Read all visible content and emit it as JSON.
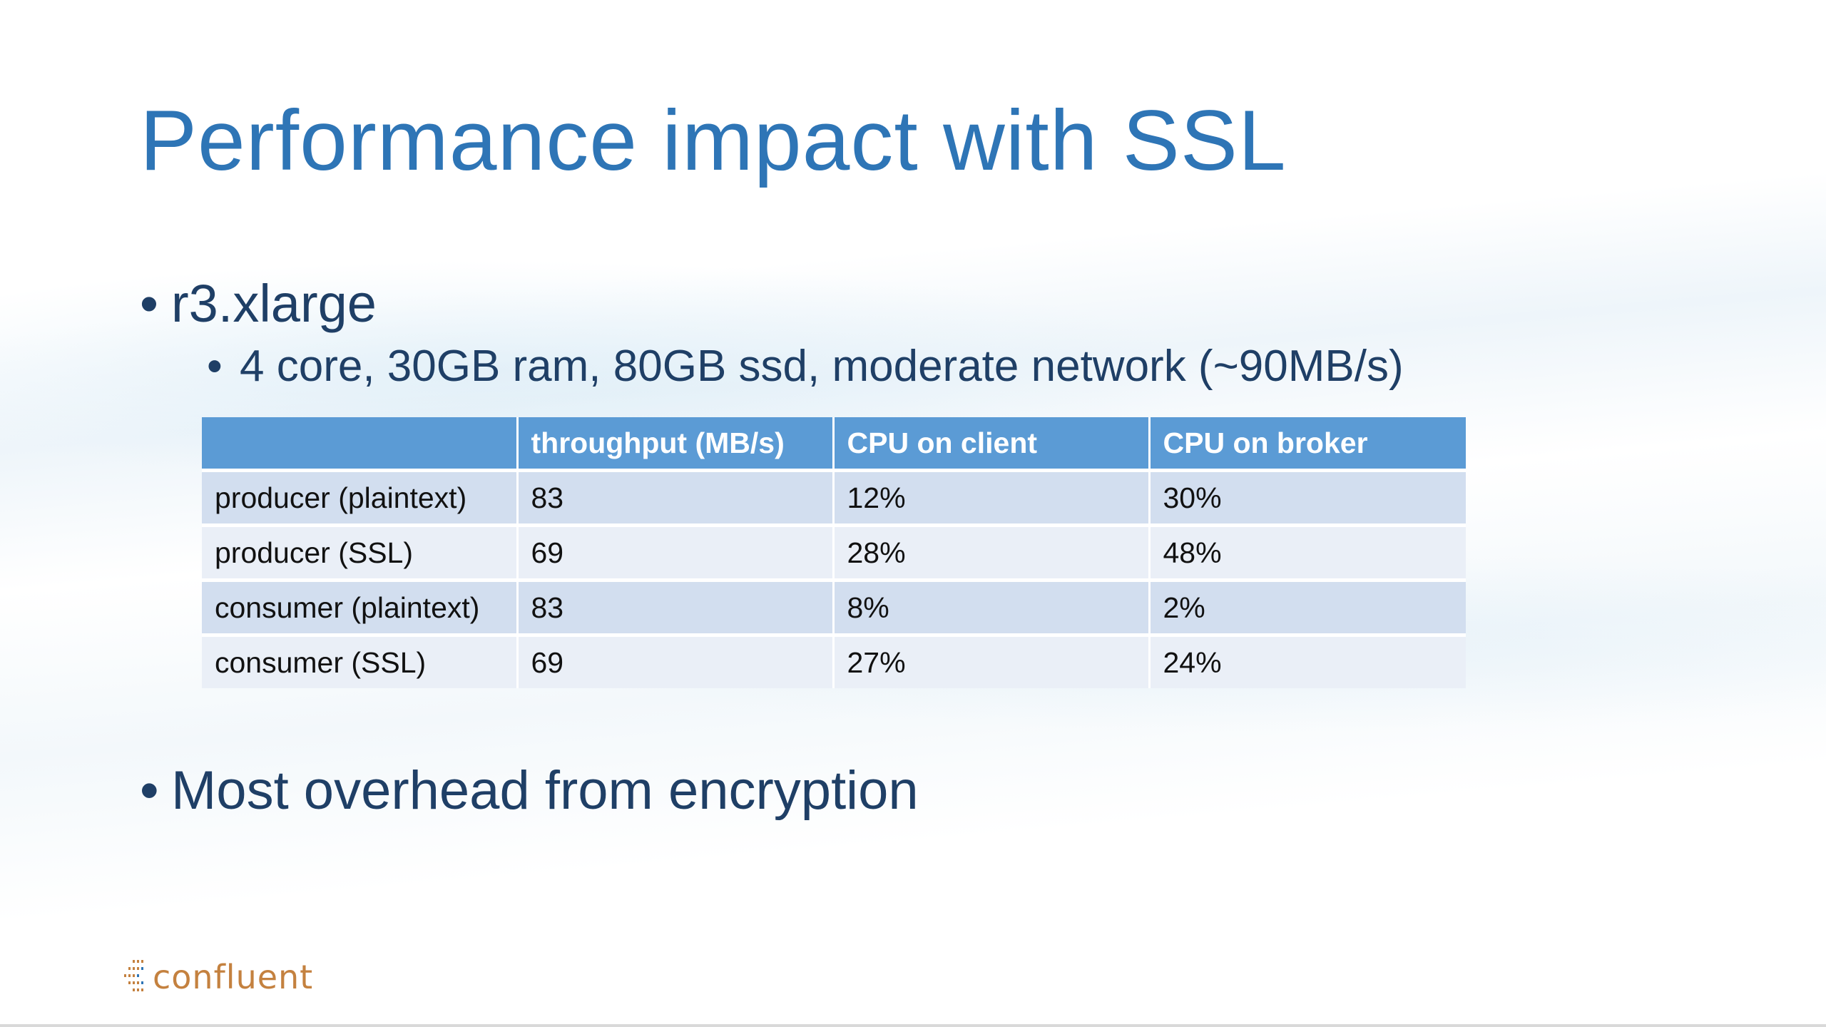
{
  "slide": {
    "title": "Performance impact with SSL",
    "bullets": {
      "instance": "r3.xlarge",
      "instance_spec": "4 core, 30GB ram, 80GB ssd, moderate network (~90MB/s)",
      "conclusion": "Most overhead from encryption"
    },
    "bullet_glyph": "•"
  },
  "table": {
    "headers": [
      "",
      "throughput (MB/s)",
      "CPU on client",
      "CPU on broker"
    ],
    "rows": [
      [
        "producer (plaintext)",
        "83",
        "12%",
        "30%"
      ],
      [
        "producer (SSL)",
        "69",
        "28%",
        "48%"
      ],
      [
        "consumer (plaintext)",
        "83",
        "8%",
        "2%"
      ],
      [
        "consumer (SSL)",
        "69",
        "27%",
        "24%"
      ]
    ]
  },
  "logo": {
    "text": "confluent",
    "icon": "confluent-logo-icon",
    "color": "#c4813f"
  },
  "colors": {
    "title": "#2e75b6",
    "body_text": "#1f3f66",
    "table_header": "#5b9bd5",
    "table_row_dark": "#d2deef",
    "table_row_light": "#eaeff7"
  }
}
